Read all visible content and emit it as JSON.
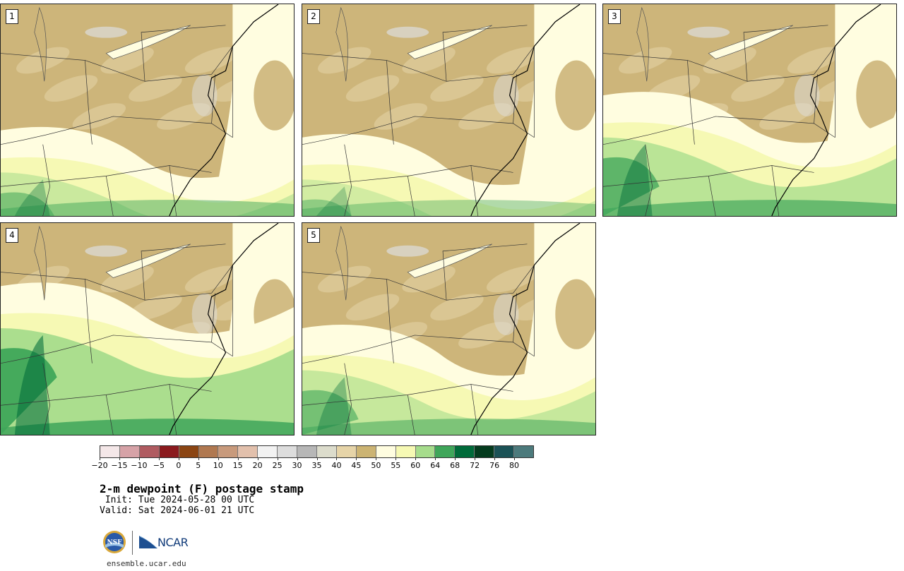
{
  "panels": [
    {
      "label": "1"
    },
    {
      "label": "2"
    },
    {
      "label": "3"
    },
    {
      "label": "4"
    },
    {
      "label": "5"
    }
  ],
  "colorbar": {
    "colors": [
      "#f4e7e8",
      "#d6a2a7",
      "#b05b61",
      "#8b1a1e",
      "#8b4513",
      "#b07850",
      "#c89a7c",
      "#e2c0ac",
      "#f2f2f2",
      "#dddddd",
      "#b7b7b7",
      "#dcdccc",
      "#e6d4a8",
      "#ccb473",
      "#fffde0",
      "#f6f9b4",
      "#a6dc8c",
      "#3fa65a",
      "#006b3a",
      "#043b1e",
      "#1b5256",
      "#4c7a7c"
    ],
    "ticks": [
      "−20",
      "−15",
      "−10",
      "−5",
      "0",
      "5",
      "10",
      "15",
      "20",
      "25",
      "30",
      "35",
      "40",
      "45",
      "50",
      "55",
      "60",
      "64",
      "68",
      "72",
      "76",
      "80"
    ]
  },
  "title": "2-m dewpoint (F) postage stamp",
  "init": " Init: Tue 2024-05-28 00 UTC",
  "valid": "Valid: Sat 2024-06-01 21 UTC",
  "logos": {
    "nsf": "NSF",
    "ncar": "NCAR"
  },
  "url": "ensemble.ucar.edu",
  "field_colors": {
    "land_dry": "#cdb57a",
    "land_tan": "#e6d4a8",
    "light_yellow": "#fffde0",
    "yellow": "#f6f9b4",
    "light_green": "#a6dc8c",
    "green": "#3fa65a",
    "dark_green": "#006b3a",
    "grey": "#dddddd"
  }
}
